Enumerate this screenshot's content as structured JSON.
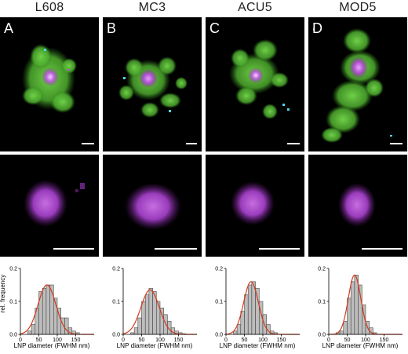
{
  "figure": {
    "columns": [
      {
        "title": "L608",
        "letter": "A"
      },
      {
        "title": "MC3",
        "letter": "B"
      },
      {
        "title": "ACU5",
        "letter": "C"
      },
      {
        "title": "MOD5",
        "letter": "D"
      }
    ]
  },
  "colors": {
    "green": "#5ec23a",
    "magenta": "#b04fd0",
    "cyan": "#48d6e6",
    "bar_fill": "#bdbdbd",
    "fit_curve": "#d23a1a"
  },
  "chart_data": [
    {
      "type": "bar",
      "ylabel": "rel. frequency",
      "xlabel": "LNP diameter (FWHM nm)",
      "xlim": [
        0,
        200
      ],
      "ylim": [
        0,
        0.2
      ],
      "xticks": [
        "0",
        "50",
        "100",
        "150"
      ],
      "yticks": [
        "0.0",
        "0.1",
        "0.2"
      ],
      "bin_width": 10,
      "bin_starts": [
        20,
        30,
        40,
        50,
        60,
        70,
        80,
        90,
        100,
        110,
        120,
        130,
        140,
        150,
        160,
        170,
        180,
        190
      ],
      "values": [
        0.01,
        0.03,
        0.08,
        0.13,
        0.14,
        0.15,
        0.15,
        0.11,
        0.08,
        0.05,
        0.05,
        0.02,
        0.01,
        0.005,
        0,
        0,
        0,
        0
      ],
      "fit": {
        "mu": 72,
        "sigma": 24,
        "peak": 0.15
      }
    },
    {
      "type": "bar",
      "ylabel": "rel. frequency",
      "xlabel": "LNP diameter (FWHM nm)",
      "xlim": [
        0,
        200
      ],
      "ylim": [
        0,
        0.2
      ],
      "xticks": [
        "0",
        "50",
        "100",
        "150"
      ],
      "yticks": [
        "0.0",
        "0.1",
        "0.2"
      ],
      "bin_width": 10,
      "bin_starts": [
        20,
        30,
        40,
        50,
        60,
        70,
        80,
        90,
        100,
        110,
        120,
        130,
        140,
        150,
        160,
        170,
        180,
        190
      ],
      "values": [
        0.005,
        0.02,
        0.05,
        0.1,
        0.12,
        0.14,
        0.13,
        0.1,
        0.08,
        0.06,
        0.04,
        0.02,
        0.01,
        0.005,
        0.002,
        0,
        0,
        0
      ],
      "fit": {
        "mu": 73,
        "sigma": 25,
        "peak": 0.135
      }
    },
    {
      "type": "bar",
      "ylabel": "rel. frequency",
      "xlabel": "LNP diameter (FWHM nm)",
      "xlim": [
        0,
        200
      ],
      "ylim": [
        0,
        0.2
      ],
      "xticks": [
        "0",
        "50",
        "100",
        "150"
      ],
      "yticks": [
        "0.0",
        "0.1",
        "0.2"
      ],
      "bin_width": 10,
      "bin_starts": [
        20,
        30,
        40,
        50,
        60,
        70,
        80,
        90,
        100,
        110,
        120,
        130,
        140,
        150,
        160,
        170,
        180,
        190
      ],
      "values": [
        0.01,
        0.03,
        0.07,
        0.12,
        0.15,
        0.16,
        0.14,
        0.1,
        0.06,
        0.03,
        0.01,
        0.005,
        0,
        0,
        0,
        0,
        0,
        0
      ],
      "fit": {
        "mu": 68,
        "sigma": 20,
        "peak": 0.16
      }
    },
    {
      "type": "bar",
      "ylabel": "rel. frequency",
      "xlabel": "LNP diameter (FWHM nm)",
      "xlim": [
        0,
        200
      ],
      "ylim": [
        0,
        0.2
      ],
      "xticks": [
        "0",
        "50",
        "100",
        "150"
      ],
      "yticks": [
        "0.0",
        "0.1",
        "0.2"
      ],
      "bin_width": 10,
      "bin_starts": [
        20,
        30,
        40,
        50,
        60,
        70,
        80,
        90,
        100,
        110,
        120,
        130,
        140,
        150,
        160,
        170,
        180,
        190
      ],
      "values": [
        0.005,
        0.01,
        0.04,
        0.11,
        0.16,
        0.18,
        0.15,
        0.09,
        0.04,
        0.02,
        0.005,
        0,
        0,
        0,
        0,
        0,
        0,
        0
      ],
      "fit": {
        "mu": 70,
        "sigma": 17,
        "peak": 0.18
      }
    }
  ]
}
